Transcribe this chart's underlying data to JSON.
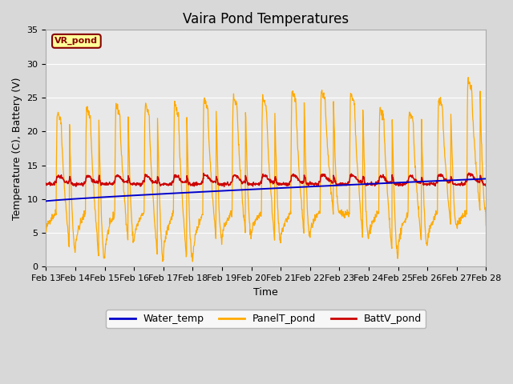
{
  "title": "Vaira Pond Temperatures",
  "xlabel": "Time",
  "ylabel": "Temperature (C), Battery (V)",
  "ylim": [
    0,
    35
  ],
  "yticks": [
    0,
    5,
    10,
    15,
    20,
    25,
    30,
    35
  ],
  "xtick_labels": [
    "Feb 13",
    "Feb 14",
    "Feb 15",
    "Feb 16",
    "Feb 17",
    "Feb 18",
    "Feb 19",
    "Feb 20",
    "Feb 21",
    "Feb 22",
    "Feb 23",
    "Feb 24",
    "Feb 25",
    "Feb 26",
    "Feb 27",
    "Feb 28"
  ],
  "water_temp_color": "#0000cc",
  "panel_temp_color": "#ffaa00",
  "batt_color": "#cc0000",
  "bg_color": "#d8d8d8",
  "plot_bg_color": "#e8e8e8",
  "legend_labels": [
    "Water_temp",
    "PanelT_pond",
    "BattV_pond"
  ],
  "station_label": "VR_pond",
  "station_label_color": "#880000",
  "station_box_color": "#ffff99",
  "title_fontsize": 12,
  "label_fontsize": 9,
  "tick_fontsize": 8,
  "legend_fontsize": 9
}
